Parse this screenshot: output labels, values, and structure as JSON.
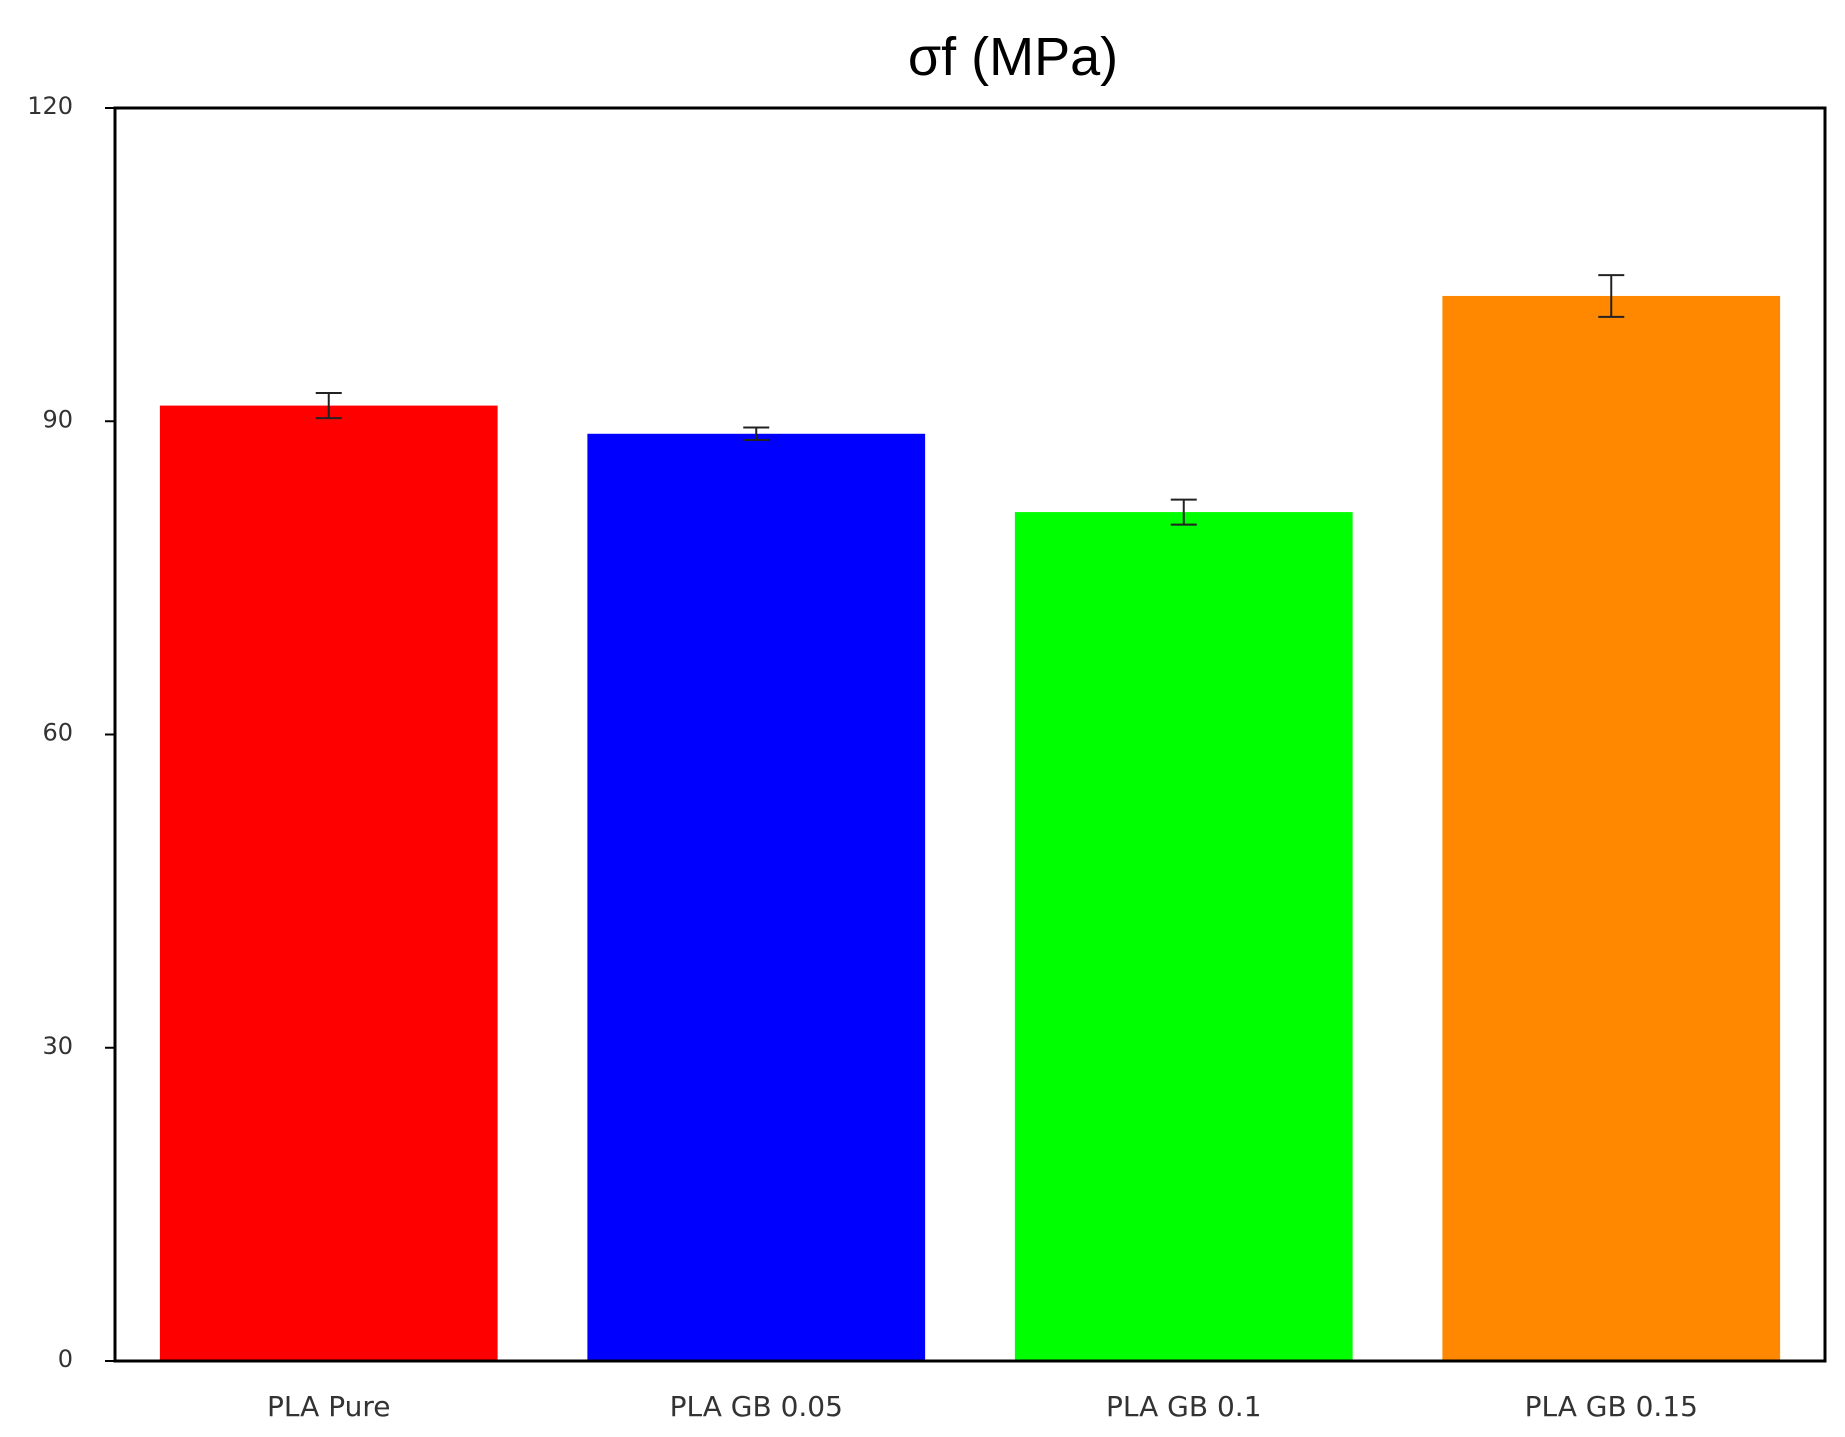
{
  "chart_data": {
    "type": "bar",
    "title": "σf (MPa)",
    "xlabel": "",
    "ylabel": "",
    "ylim": [
      0,
      120
    ],
    "yticks": [
      0,
      30,
      60,
      90,
      120
    ],
    "grid": false,
    "legend": "none",
    "categories": [
      "PLA Pure",
      "PLA GB 0.05",
      "PLA GB 0.1",
      "PLA GB 0.15"
    ],
    "values": [
      91.5,
      88.8,
      81.3,
      102.0
    ],
    "errors": [
      1.2,
      0.6,
      1.2,
      2.0
    ],
    "colors": [
      "#ff0000",
      "#0000ff",
      "#00ff00",
      "#ff8800"
    ]
  }
}
